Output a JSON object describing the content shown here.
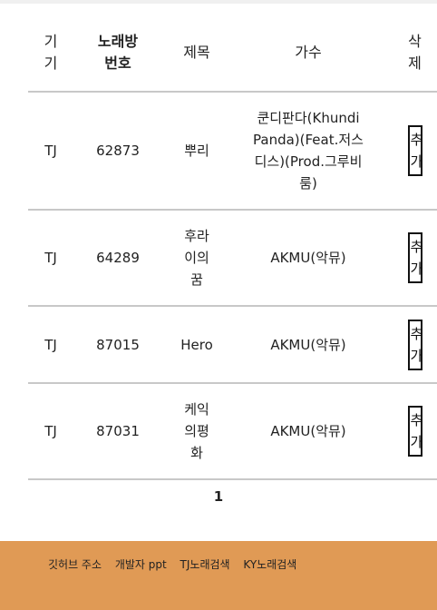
{
  "table": {
    "headers": {
      "device": "기기",
      "number": "노래방 번호",
      "title": "제목",
      "artist": "가수",
      "delete": "삭제"
    },
    "rows": [
      {
        "device": "TJ",
        "number": "62873",
        "title": "뿌리",
        "artist": "쿤디판다(Khundi Panda)(Feat.저스디스)(Prod.그루비룸)",
        "action": "추가"
      },
      {
        "device": "TJ",
        "number": "64289",
        "title": "후라이의꿈",
        "artist": "AKMU(악뮤)",
        "action": "추가"
      },
      {
        "device": "TJ",
        "number": "87015",
        "title": "Hero",
        "artist": "AKMU(악뮤)",
        "action": "추가"
      },
      {
        "device": "TJ",
        "number": "87031",
        "title": "케익의평화",
        "artist": "AKMU(악뮤)",
        "action": "추가"
      }
    ]
  },
  "pagination": {
    "current": "1"
  },
  "footer": {
    "links": [
      "깃허브 주소",
      "개발자 ppt",
      "TJ노래검색",
      "KY노래검색"
    ]
  },
  "colors": {
    "footer_bg": "#e09a55",
    "row_border": "#c8c8c8"
  }
}
